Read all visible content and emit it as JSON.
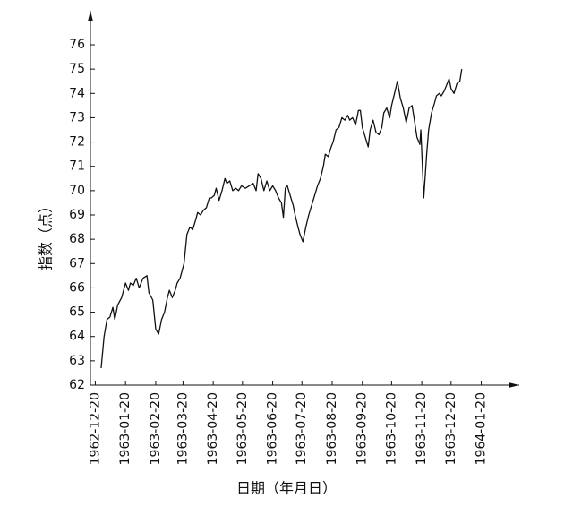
{
  "chart_data": {
    "type": "line",
    "x_label": "日期（年月日）",
    "y_label": "指数（点）",
    "x": [
      "1962-12-26",
      "1962-12-29",
      "1963-01-01",
      "1963-01-04",
      "1963-01-07",
      "1963-01-09",
      "1963-01-12",
      "1963-01-16",
      "1963-01-20",
      "1963-01-23",
      "1963-01-25",
      "1963-01-28",
      "1963-01-31",
      "1963-02-03",
      "1963-02-07",
      "1963-02-11",
      "1963-02-13",
      "1963-02-17",
      "1963-02-20",
      "1963-02-23",
      "1963-02-26",
      "1963-03-01",
      "1963-03-04",
      "1963-03-06",
      "1963-03-09",
      "1963-03-12",
      "1963-03-14",
      "1963-03-17",
      "1963-03-19",
      "1963-03-21",
      "1963-03-24",
      "1963-03-27",
      "1963-03-30",
      "1963-04-02",
      "1963-04-04",
      "1963-04-07",
      "1963-04-10",
      "1963-04-13",
      "1963-04-16",
      "1963-04-18",
      "1963-04-21",
      "1963-04-23",
      "1963-04-26",
      "1963-04-29",
      "1963-05-02",
      "1963-05-04",
      "1963-05-07",
      "1963-05-10",
      "1963-05-13",
      "1963-05-16",
      "1963-05-19",
      "1963-05-23",
      "1963-05-27",
      "1963-05-31",
      "1963-06-03",
      "1963-06-05",
      "1963-06-08",
      "1963-06-11",
      "1963-06-14",
      "1963-06-17",
      "1963-06-20",
      "1963-06-23",
      "1963-06-26",
      "1963-06-29",
      "1963-07-01",
      "1963-07-03",
      "1963-07-05",
      "1963-07-08",
      "1963-07-11",
      "1963-07-13",
      "1963-07-16",
      "1963-07-18",
      "1963-07-21",
      "1963-07-24",
      "1963-07-27",
      "1963-07-30",
      "1963-08-02",
      "1963-08-05",
      "1963-08-08",
      "1963-08-11",
      "1963-08-13",
      "1963-08-16",
      "1963-08-19",
      "1963-08-21",
      "1963-08-24",
      "1963-08-27",
      "1963-08-30",
      "1963-09-02",
      "1963-09-05",
      "1963-09-07",
      "1963-09-10",
      "1963-09-13",
      "1963-09-16",
      "1963-09-18",
      "1963-09-20",
      "1963-09-23",
      "1963-09-26",
      "1963-09-28",
      "1963-10-01",
      "1963-10-04",
      "1963-10-07",
      "1963-10-10",
      "1963-10-12",
      "1963-10-15",
      "1963-10-18",
      "1963-10-20",
      "1963-10-23",
      "1963-10-26",
      "1963-10-29",
      "1963-11-01",
      "1963-11-04",
      "1963-11-07",
      "1963-11-10",
      "1963-11-12",
      "1963-11-15",
      "1963-11-18",
      "1963-11-19",
      "1963-11-22",
      "1963-11-25",
      "1963-11-27",
      "1963-11-30",
      "1963-12-03",
      "1963-12-05",
      "1963-12-08",
      "1963-12-10",
      "1963-12-13",
      "1963-12-15",
      "1963-12-18",
      "1963-12-20",
      "1963-12-23",
      "1963-12-26",
      "1963-12-29",
      "1963-12-31"
    ],
    "series": [
      {
        "color": "#111111",
        "values": [
          62.7,
          64.0,
          64.7,
          64.8,
          65.2,
          64.7,
          65.3,
          65.6,
          66.2,
          65.9,
          66.2,
          66.1,
          66.4,
          66.0,
          66.4,
          66.5,
          65.8,
          65.5,
          64.3,
          64.1,
          64.7,
          65.0,
          65.6,
          65.9,
          65.6,
          65.9,
          66.2,
          66.4,
          66.7,
          67.0,
          68.2,
          68.5,
          68.4,
          68.8,
          69.1,
          69.0,
          69.2,
          69.3,
          69.7,
          69.7,
          69.8,
          70.1,
          69.6,
          70.0,
          70.5,
          70.3,
          70.4,
          70.0,
          70.1,
          70.0,
          70.2,
          70.1,
          70.2,
          70.3,
          70.0,
          70.7,
          70.5,
          70.0,
          70.4,
          70.0,
          70.2,
          70.0,
          69.7,
          69.5,
          68.9,
          70.1,
          70.2,
          69.8,
          69.4,
          69.0,
          68.5,
          68.2,
          67.9,
          68.5,
          69.0,
          69.4,
          69.8,
          70.2,
          70.5,
          71.0,
          71.5,
          71.4,
          71.8,
          72.0,
          72.5,
          72.6,
          73.0,
          72.9,
          73.1,
          72.9,
          73.0,
          72.7,
          73.3,
          73.3,
          72.6,
          72.2,
          71.8,
          72.5,
          72.9,
          72.4,
          72.3,
          72.6,
          73.2,
          73.4,
          73.0,
          73.5,
          74.0,
          74.5,
          73.8,
          73.4,
          72.8,
          73.4,
          73.5,
          73.0,
          72.2,
          71.9,
          72.5,
          69.7,
          71.5,
          72.5,
          73.2,
          73.6,
          73.9,
          74.0,
          73.9,
          74.1,
          74.3,
          74.6,
          74.2,
          74.0,
          74.4,
          74.5,
          75.0
        ]
      }
    ],
    "xlim": [
      "1962-12-15",
      "1964-02-28"
    ],
    "xticks": [
      "1962-12-20",
      "1963-01-20",
      "1963-02-20",
      "1963-03-20",
      "1963-04-20",
      "1963-05-20",
      "1963-06-20",
      "1963-07-20",
      "1963-08-20",
      "1963-09-20",
      "1963-10-20",
      "1963-11-20",
      "1963-12-20",
      "1964-01-20"
    ],
    "ylim": [
      62,
      77.4
    ],
    "yticks": [
      62,
      63,
      64,
      65,
      66,
      67,
      68,
      69,
      70,
      71,
      72,
      73,
      74,
      75,
      76
    ]
  }
}
